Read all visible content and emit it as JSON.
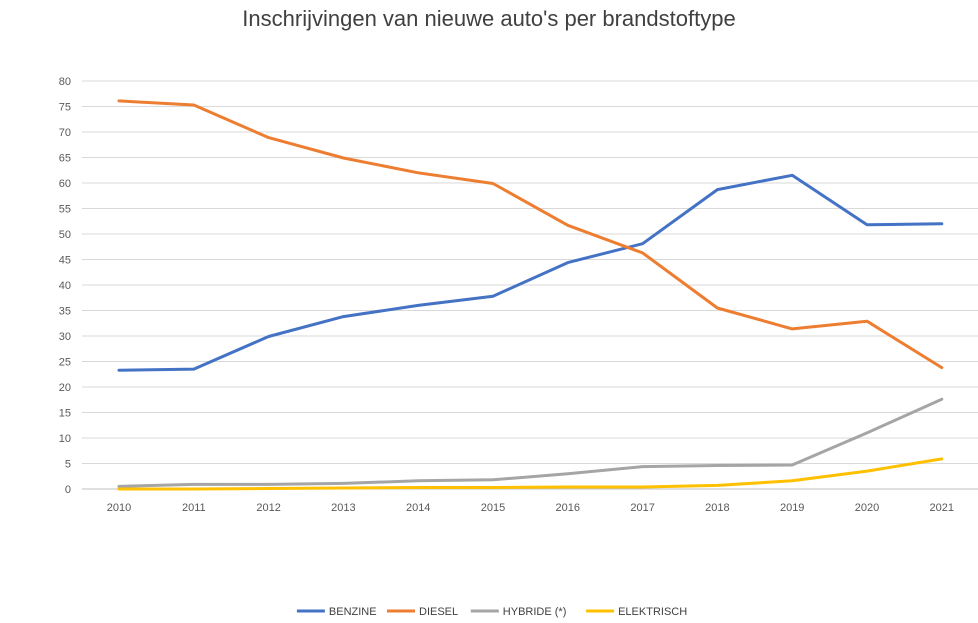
{
  "chart_data": {
    "type": "line",
    "title": "Inschrijvingen van nieuwe auto's per brandstoftype",
    "xlabel": "",
    "ylabel": "",
    "x": [
      "2010",
      "2011",
      "2012",
      "2013",
      "2014",
      "2015",
      "2016",
      "2017",
      "2018",
      "2019",
      "2020",
      "2021"
    ],
    "ylim": [
      0,
      80
    ],
    "yticks": [
      0,
      5,
      10,
      15,
      20,
      25,
      30,
      35,
      40,
      45,
      50,
      55,
      60,
      65,
      70,
      75,
      80
    ],
    "grid": true,
    "legend_position": "bottom",
    "series": [
      {
        "name": "BENZINE",
        "color": "#4472c4",
        "values": [
          23.3,
          23.5,
          29.9,
          33.8,
          36.0,
          37.8,
          44.4,
          48.1,
          58.7,
          61.5,
          51.8,
          52.0
        ]
      },
      {
        "name": "DIESEL",
        "color": "#ed7d31",
        "values": [
          76.1,
          75.3,
          68.9,
          64.9,
          62.0,
          59.9,
          51.7,
          46.3,
          35.5,
          31.4,
          32.9,
          23.8
        ]
      },
      {
        "name": "HYBRIDE (*)",
        "color": "#a5a5a5",
        "values": [
          0.5,
          0.9,
          0.9,
          1.1,
          1.6,
          1.8,
          3.0,
          4.4,
          4.6,
          4.7,
          11.0,
          17.6
        ]
      },
      {
        "name": "ELEKTRISCH",
        "color": "#ffc000",
        "values": [
          0.0,
          0.0,
          0.1,
          0.2,
          0.3,
          0.3,
          0.4,
          0.4,
          0.7,
          1.6,
          3.5,
          5.9
        ]
      }
    ]
  }
}
